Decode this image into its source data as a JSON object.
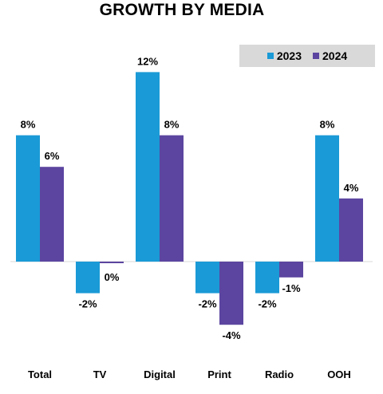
{
  "chart_data": {
    "type": "bar",
    "title": "GROWTH BY MEDIA",
    "xlabel": "",
    "ylabel": "",
    "categories": [
      "Total",
      "TV",
      "Digital",
      "Print",
      "Radio",
      "OOH"
    ],
    "series": [
      {
        "name": "2023",
        "color": "#1a9ad6",
        "values": [
          8,
          -2,
          12,
          -2,
          -2,
          8
        ],
        "labels": [
          "8%",
          "-2%",
          "12%",
          "-2%",
          "-2%",
          "8%"
        ]
      },
      {
        "name": "2024",
        "color": "#5b45a0",
        "values": [
          6,
          0,
          8,
          -4,
          -1,
          4
        ],
        "labels": [
          "6%",
          "0%",
          "8%",
          "-4%",
          "-1%",
          "4%"
        ]
      }
    ],
    "ylim": [
      -6,
      12
    ],
    "grid": false,
    "legend_position": "top-right"
  }
}
